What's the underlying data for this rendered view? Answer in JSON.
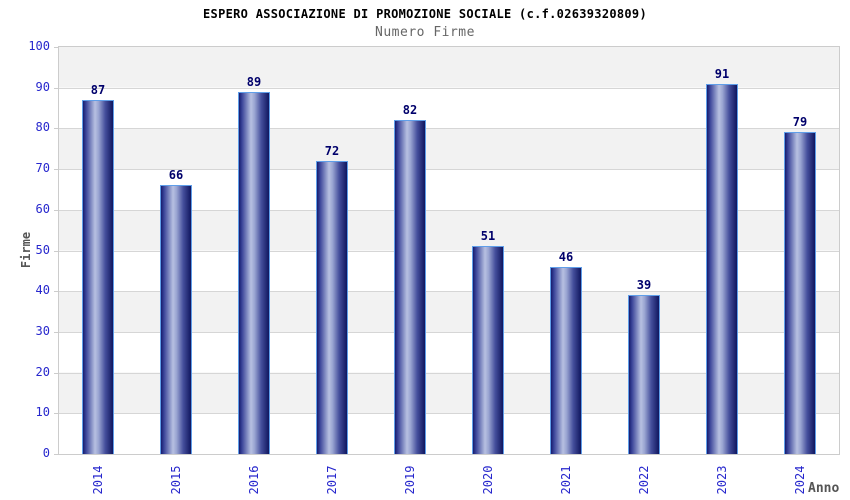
{
  "page": {
    "title": "ESPERO ASSOCIAZIONE DI PROMOZIONE SOCIALE (c.f.02639320809)",
    "subtitle": "Numero Firme"
  },
  "chart_data": {
    "type": "bar",
    "title": "ESPERO ASSOCIAZIONE DI PROMOZIONE SOCIALE (c.f.02639320809)",
    "subtitle": "Numero Firme",
    "categories": [
      "2014",
      "2015",
      "2016",
      "2017",
      "2019",
      "2020",
      "2021",
      "2022",
      "2023",
      "2024"
    ],
    "values": [
      87,
      66,
      89,
      72,
      82,
      51,
      46,
      39,
      91,
      79
    ],
    "xlabel": "Anno",
    "ylabel": "Firme",
    "ylim": [
      0,
      100
    ],
    "yticks": [
      0,
      10,
      20,
      30,
      40,
      50,
      60,
      70,
      80,
      90,
      100
    ],
    "grid": true,
    "bands": "alternating horizontal gray/white stripes every 10 units, gray at 90-100",
    "legend": false,
    "value_labels": true
  },
  "colors": {
    "background": "#ffffff",
    "title_color": "#000000",
    "subtitle_color": "#666666",
    "axis_tick_label": "#2727cd",
    "value_label": "#00006b",
    "axis_title": "#555555",
    "band_gray": "#f2f2f2",
    "band_white": "#ffffff",
    "gridline": "#d6d6d6",
    "plot_border": "#cccccc",
    "bar_edge_dark": "#161c6e",
    "bar_shoulder": "#3a4499",
    "bar_mid_light": "#b7c0e1",
    "bar_border": "#5f9ee9"
  }
}
